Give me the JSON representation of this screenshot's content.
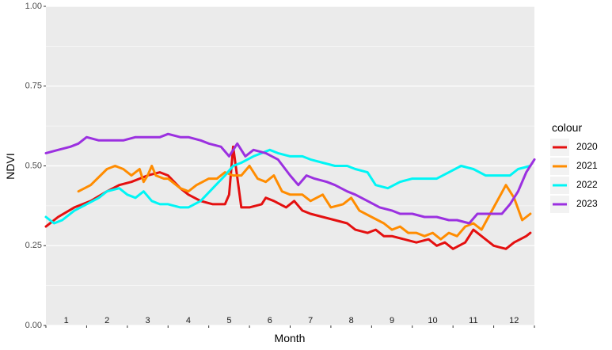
{
  "chart_data": {
    "type": "line",
    "xlabel": "Month",
    "ylabel": "NDVI",
    "ylim": [
      0,
      1
    ],
    "y_ticks": [
      "0.00",
      "0.25",
      "0.50",
      "0.75",
      "1.00"
    ],
    "x_categories": [
      "1",
      "2",
      "3",
      "4",
      "5",
      "6",
      "7",
      "8",
      "9",
      "10",
      "11",
      "12"
    ],
    "xlim": [
      0.5,
      12.5
    ],
    "grid": true,
    "legend": {
      "title": "colour",
      "position": "right"
    },
    "series": [
      {
        "name": "2020",
        "color": "#e41010",
        "points": [
          [
            0.5,
            0.31
          ],
          [
            0.8,
            0.34
          ],
          [
            1.2,
            0.37
          ],
          [
            1.6,
            0.39
          ],
          [
            2.0,
            0.42
          ],
          [
            2.3,
            0.44
          ],
          [
            2.6,
            0.45
          ],
          [
            3.0,
            0.47
          ],
          [
            3.3,
            0.48
          ],
          [
            3.5,
            0.47
          ],
          [
            3.8,
            0.43
          ],
          [
            4.0,
            0.41
          ],
          [
            4.3,
            0.39
          ],
          [
            4.6,
            0.38
          ],
          [
            4.9,
            0.38
          ],
          [
            5.0,
            0.41
          ],
          [
            5.1,
            0.56
          ],
          [
            5.3,
            0.37
          ],
          [
            5.5,
            0.37
          ],
          [
            5.8,
            0.38
          ],
          [
            5.9,
            0.4
          ],
          [
            6.1,
            0.39
          ],
          [
            6.4,
            0.37
          ],
          [
            6.6,
            0.39
          ],
          [
            6.8,
            0.36
          ],
          [
            7.0,
            0.35
          ],
          [
            7.3,
            0.34
          ],
          [
            7.6,
            0.33
          ],
          [
            7.9,
            0.32
          ],
          [
            8.1,
            0.3
          ],
          [
            8.4,
            0.29
          ],
          [
            8.6,
            0.3
          ],
          [
            8.8,
            0.28
          ],
          [
            9.0,
            0.28
          ],
          [
            9.3,
            0.27
          ],
          [
            9.6,
            0.26
          ],
          [
            9.9,
            0.27
          ],
          [
            10.1,
            0.25
          ],
          [
            10.3,
            0.26
          ],
          [
            10.5,
            0.24
          ],
          [
            10.8,
            0.26
          ],
          [
            11.0,
            0.3
          ],
          [
            11.2,
            0.28
          ],
          [
            11.5,
            0.25
          ],
          [
            11.8,
            0.24
          ],
          [
            12.0,
            0.26
          ],
          [
            12.3,
            0.28
          ],
          [
            12.4,
            0.29
          ]
        ]
      },
      {
        "name": "2021",
        "color": "#ff8c00",
        "points": [
          [
            1.3,
            0.42
          ],
          [
            1.6,
            0.44
          ],
          [
            2.0,
            0.49
          ],
          [
            2.2,
            0.5
          ],
          [
            2.4,
            0.49
          ],
          [
            2.6,
            0.47
          ],
          [
            2.8,
            0.49
          ],
          [
            2.9,
            0.45
          ],
          [
            3.0,
            0.47
          ],
          [
            3.1,
            0.5
          ],
          [
            3.2,
            0.47
          ],
          [
            3.4,
            0.46
          ],
          [
            3.5,
            0.46
          ],
          [
            3.8,
            0.43
          ],
          [
            4.0,
            0.42
          ],
          [
            4.2,
            0.44
          ],
          [
            4.5,
            0.46
          ],
          [
            4.7,
            0.46
          ],
          [
            4.9,
            0.48
          ],
          [
            5.1,
            0.47
          ],
          [
            5.3,
            0.47
          ],
          [
            5.5,
            0.5
          ],
          [
            5.7,
            0.46
          ],
          [
            5.9,
            0.45
          ],
          [
            6.1,
            0.47
          ],
          [
            6.3,
            0.42
          ],
          [
            6.5,
            0.41
          ],
          [
            6.8,
            0.41
          ],
          [
            7.0,
            0.39
          ],
          [
            7.3,
            0.41
          ],
          [
            7.5,
            0.37
          ],
          [
            7.8,
            0.38
          ],
          [
            8.0,
            0.4
          ],
          [
            8.2,
            0.36
          ],
          [
            8.5,
            0.34
          ],
          [
            8.8,
            0.32
          ],
          [
            9.0,
            0.3
          ],
          [
            9.2,
            0.31
          ],
          [
            9.4,
            0.29
          ],
          [
            9.6,
            0.29
          ],
          [
            9.8,
            0.28
          ],
          [
            10.0,
            0.29
          ],
          [
            10.2,
            0.27
          ],
          [
            10.4,
            0.29
          ],
          [
            10.6,
            0.28
          ],
          [
            10.8,
            0.31
          ],
          [
            11.0,
            0.32
          ],
          [
            11.2,
            0.3
          ],
          [
            11.5,
            0.37
          ],
          [
            11.8,
            0.44
          ],
          [
            12.0,
            0.4
          ],
          [
            12.2,
            0.33
          ],
          [
            12.4,
            0.35
          ]
        ]
      },
      {
        "name": "2022",
        "color": "#00f5f5",
        "points": [
          [
            0.5,
            0.34
          ],
          [
            0.7,
            0.32
          ],
          [
            0.9,
            0.33
          ],
          [
            1.2,
            0.36
          ],
          [
            1.5,
            0.38
          ],
          [
            1.8,
            0.4
          ],
          [
            2.0,
            0.42
          ],
          [
            2.3,
            0.43
          ],
          [
            2.5,
            0.41
          ],
          [
            2.7,
            0.4
          ],
          [
            2.9,
            0.42
          ],
          [
            3.1,
            0.39
          ],
          [
            3.3,
            0.38
          ],
          [
            3.5,
            0.38
          ],
          [
            3.8,
            0.37
          ],
          [
            4.0,
            0.37
          ],
          [
            4.3,
            0.39
          ],
          [
            4.6,
            0.43
          ],
          [
            4.9,
            0.47
          ],
          [
            5.1,
            0.5
          ],
          [
            5.3,
            0.51
          ],
          [
            5.6,
            0.53
          ],
          [
            5.8,
            0.54
          ],
          [
            6.0,
            0.55
          ],
          [
            6.2,
            0.54
          ],
          [
            6.5,
            0.53
          ],
          [
            6.8,
            0.53
          ],
          [
            7.0,
            0.52
          ],
          [
            7.3,
            0.51
          ],
          [
            7.6,
            0.5
          ],
          [
            7.9,
            0.5
          ],
          [
            8.1,
            0.49
          ],
          [
            8.4,
            0.48
          ],
          [
            8.6,
            0.44
          ],
          [
            8.9,
            0.43
          ],
          [
            9.2,
            0.45
          ],
          [
            9.5,
            0.46
          ],
          [
            9.8,
            0.46
          ],
          [
            10.1,
            0.46
          ],
          [
            10.4,
            0.48
          ],
          [
            10.7,
            0.5
          ],
          [
            11.0,
            0.49
          ],
          [
            11.3,
            0.47
          ],
          [
            11.6,
            0.47
          ],
          [
            11.9,
            0.47
          ],
          [
            12.1,
            0.49
          ],
          [
            12.4,
            0.5
          ]
        ]
      },
      {
        "name": "2023",
        "color": "#9b30e0",
        "points": [
          [
            0.5,
            0.54
          ],
          [
            0.8,
            0.55
          ],
          [
            1.1,
            0.56
          ],
          [
            1.3,
            0.57
          ],
          [
            1.5,
            0.59
          ],
          [
            1.8,
            0.58
          ],
          [
            2.1,
            0.58
          ],
          [
            2.4,
            0.58
          ],
          [
            2.7,
            0.59
          ],
          [
            3.0,
            0.59
          ],
          [
            3.3,
            0.59
          ],
          [
            3.5,
            0.6
          ],
          [
            3.8,
            0.59
          ],
          [
            4.0,
            0.59
          ],
          [
            4.3,
            0.58
          ],
          [
            4.5,
            0.57
          ],
          [
            4.8,
            0.56
          ],
          [
            5.0,
            0.53
          ],
          [
            5.2,
            0.57
          ],
          [
            5.4,
            0.53
          ],
          [
            5.6,
            0.55
          ],
          [
            5.9,
            0.54
          ],
          [
            6.2,
            0.52
          ],
          [
            6.5,
            0.47
          ],
          [
            6.7,
            0.44
          ],
          [
            6.9,
            0.47
          ],
          [
            7.1,
            0.46
          ],
          [
            7.4,
            0.45
          ],
          [
            7.6,
            0.44
          ],
          [
            7.9,
            0.42
          ],
          [
            8.1,
            0.41
          ],
          [
            8.4,
            0.39
          ],
          [
            8.7,
            0.37
          ],
          [
            9.0,
            0.36
          ],
          [
            9.2,
            0.35
          ],
          [
            9.5,
            0.35
          ],
          [
            9.8,
            0.34
          ],
          [
            10.1,
            0.34
          ],
          [
            10.4,
            0.33
          ],
          [
            10.6,
            0.33
          ],
          [
            10.9,
            0.32
          ],
          [
            11.1,
            0.35
          ],
          [
            11.4,
            0.35
          ],
          [
            11.7,
            0.35
          ],
          [
            11.9,
            0.38
          ],
          [
            12.1,
            0.42
          ],
          [
            12.3,
            0.48
          ],
          [
            12.5,
            0.52
          ]
        ]
      }
    ]
  }
}
